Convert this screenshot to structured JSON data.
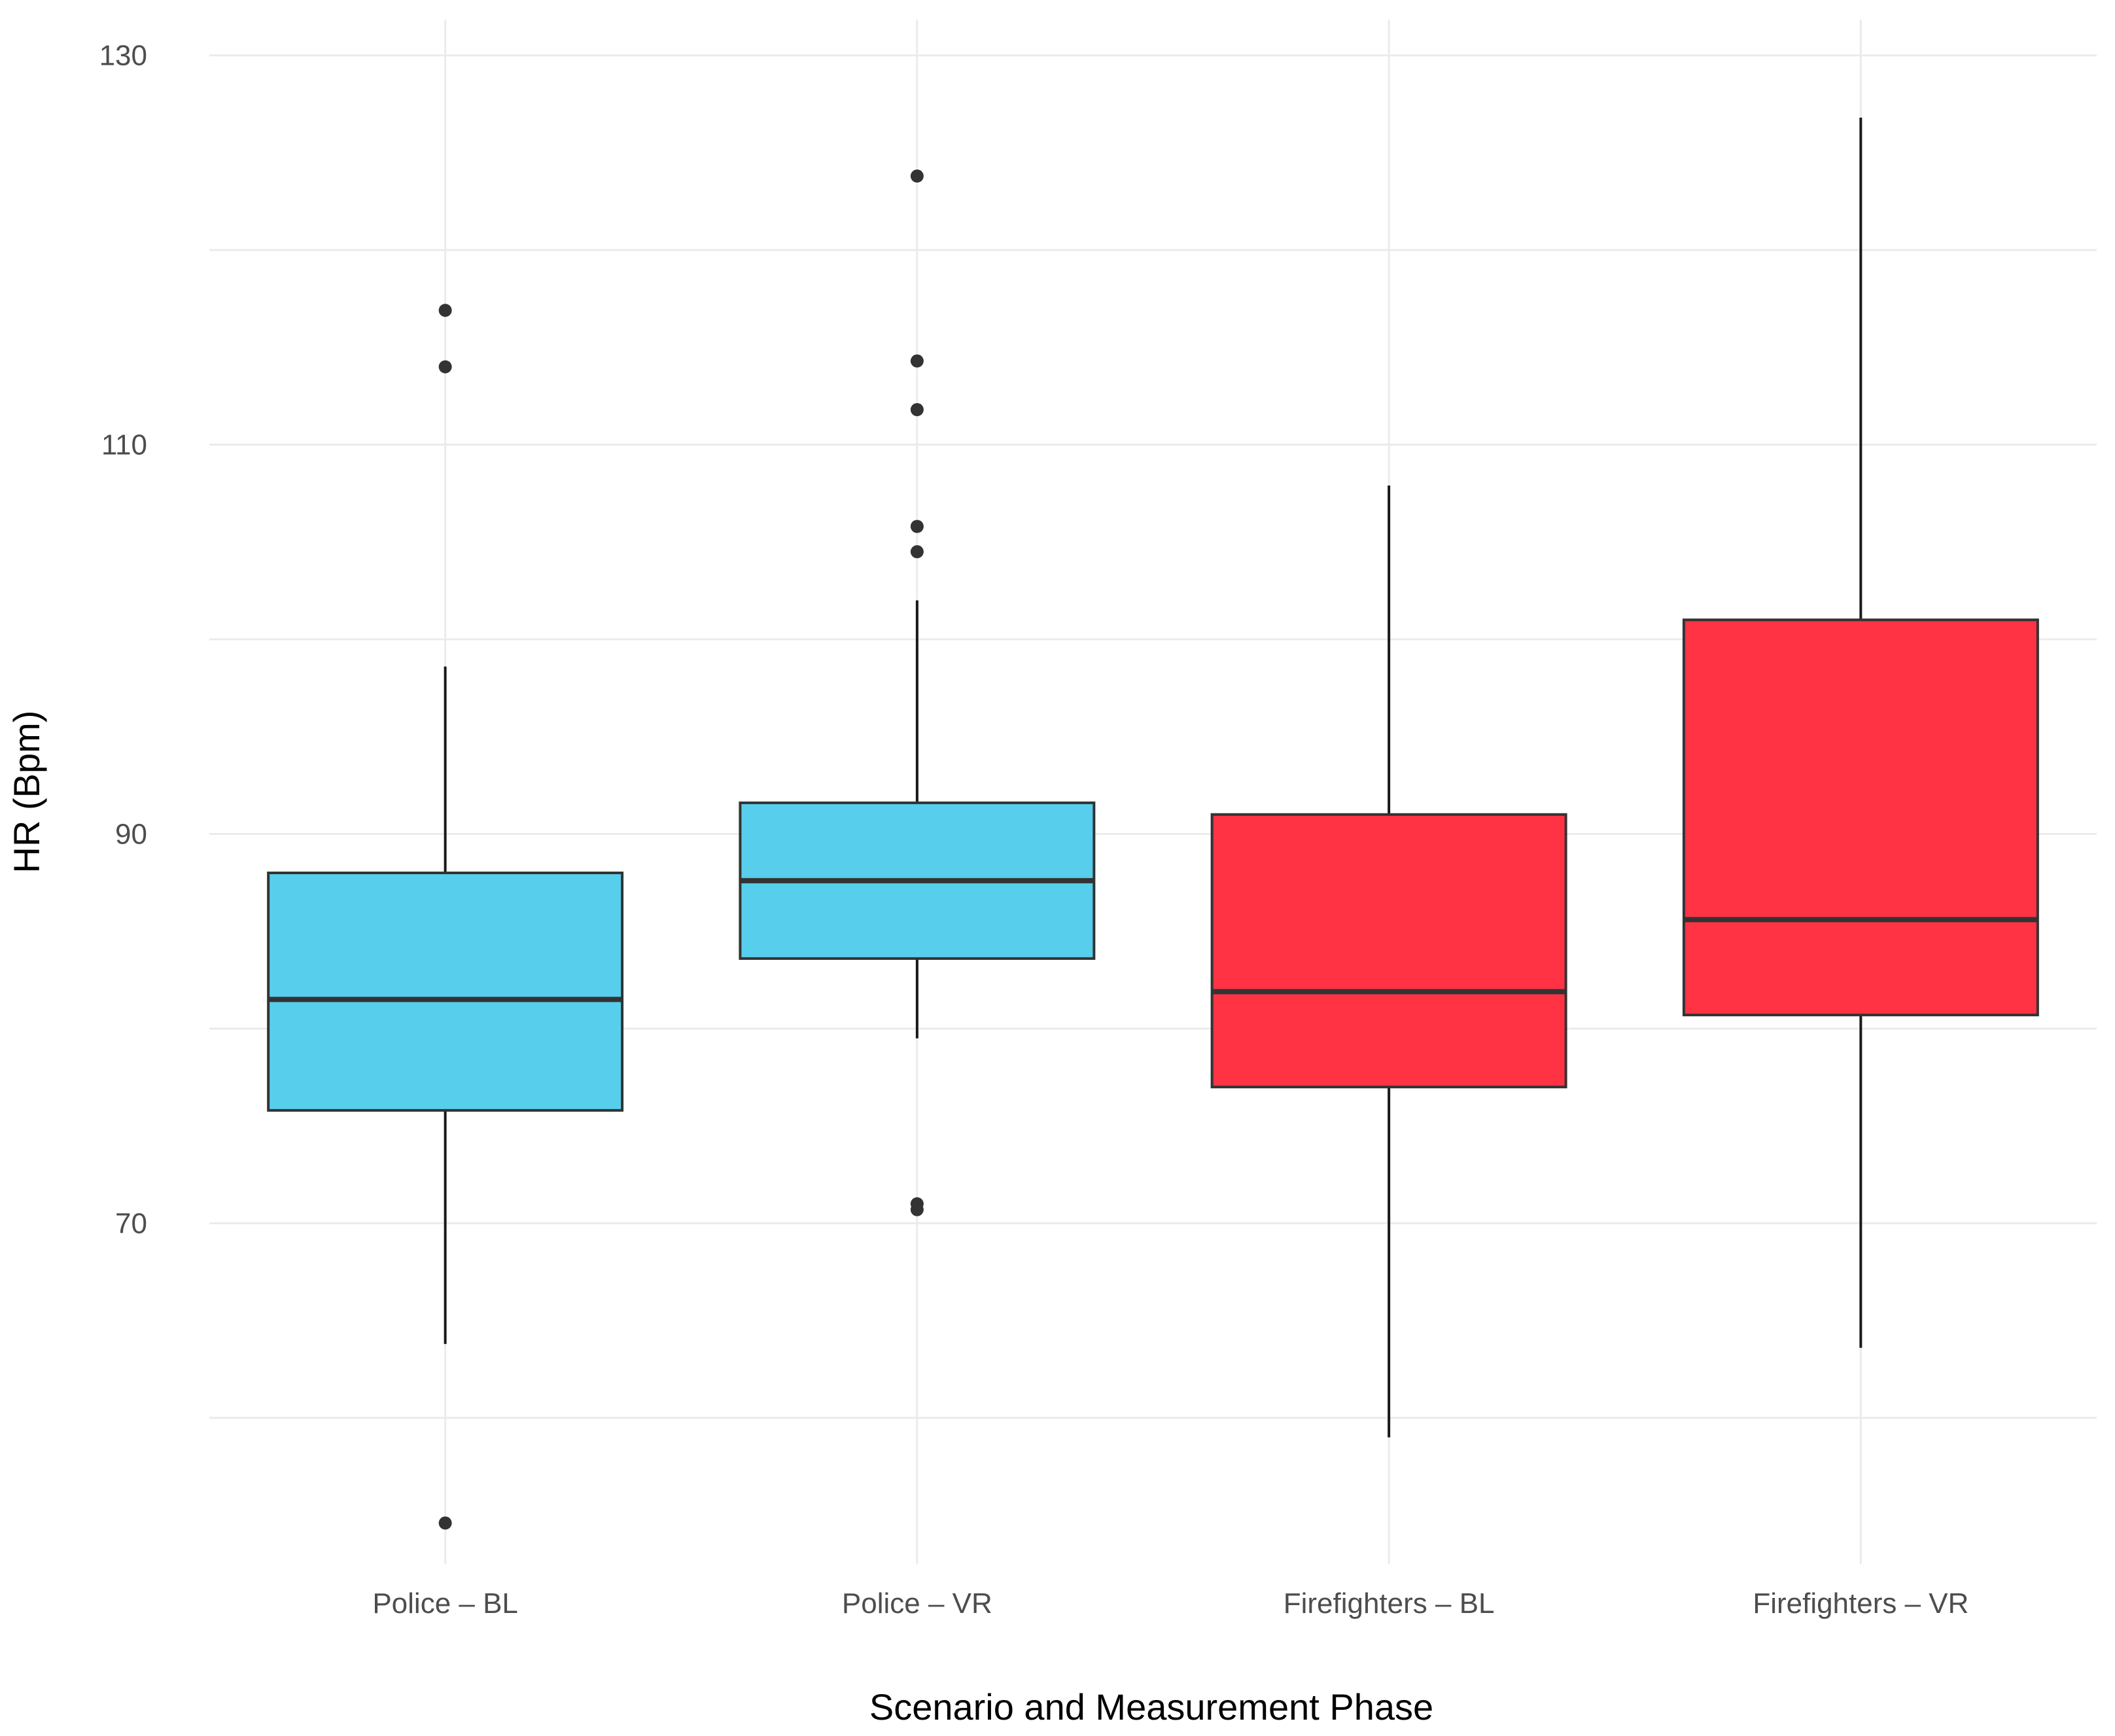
{
  "chart_data": {
    "type": "boxplot",
    "title": "",
    "xlabel": "Scenario and Measurement Phase",
    "ylabel": "HR (Bpm)",
    "ylim": [
      52.5,
      131.5
    ],
    "yticks": [
      70,
      90,
      110,
      130
    ],
    "y_minor_ticks": [
      60,
      80,
      100,
      120
    ],
    "grid": true,
    "categories": [
      "Police – BL",
      "Police – VR",
      "Firefighters – BL",
      "Firefighters – VR"
    ],
    "colors": {
      "Police": "#57CEEB",
      "Firefighters": "#FF3344"
    },
    "boxes": [
      {
        "category": "Police – BL",
        "group": "Police",
        "whisker_low": 63.8,
        "q1": 75.8,
        "median": 81.5,
        "q3": 88.0,
        "whisker_high": 98.6,
        "outliers": [
          54.6,
          114.0,
          116.9
        ]
      },
      {
        "category": "Police – VR",
        "group": "Police",
        "whisker_low": 79.5,
        "q1": 83.6,
        "median": 87.6,
        "q3": 91.6,
        "whisker_high": 102.0,
        "outliers": [
          70.7,
          71.0,
          104.5,
          105.8,
          111.8,
          114.3,
          123.8
        ]
      },
      {
        "category": "Firefighters – BL",
        "group": "Firefighters",
        "whisker_low": 59.0,
        "q1": 77.0,
        "median": 81.9,
        "q3": 91.0,
        "whisker_high": 107.9,
        "outliers": []
      },
      {
        "category": "Firefighters – VR",
        "group": "Firefighters",
        "whisker_low": 63.6,
        "q1": 80.7,
        "median": 85.6,
        "q3": 101.0,
        "whisker_high": 126.8,
        "outliers": []
      }
    ]
  }
}
